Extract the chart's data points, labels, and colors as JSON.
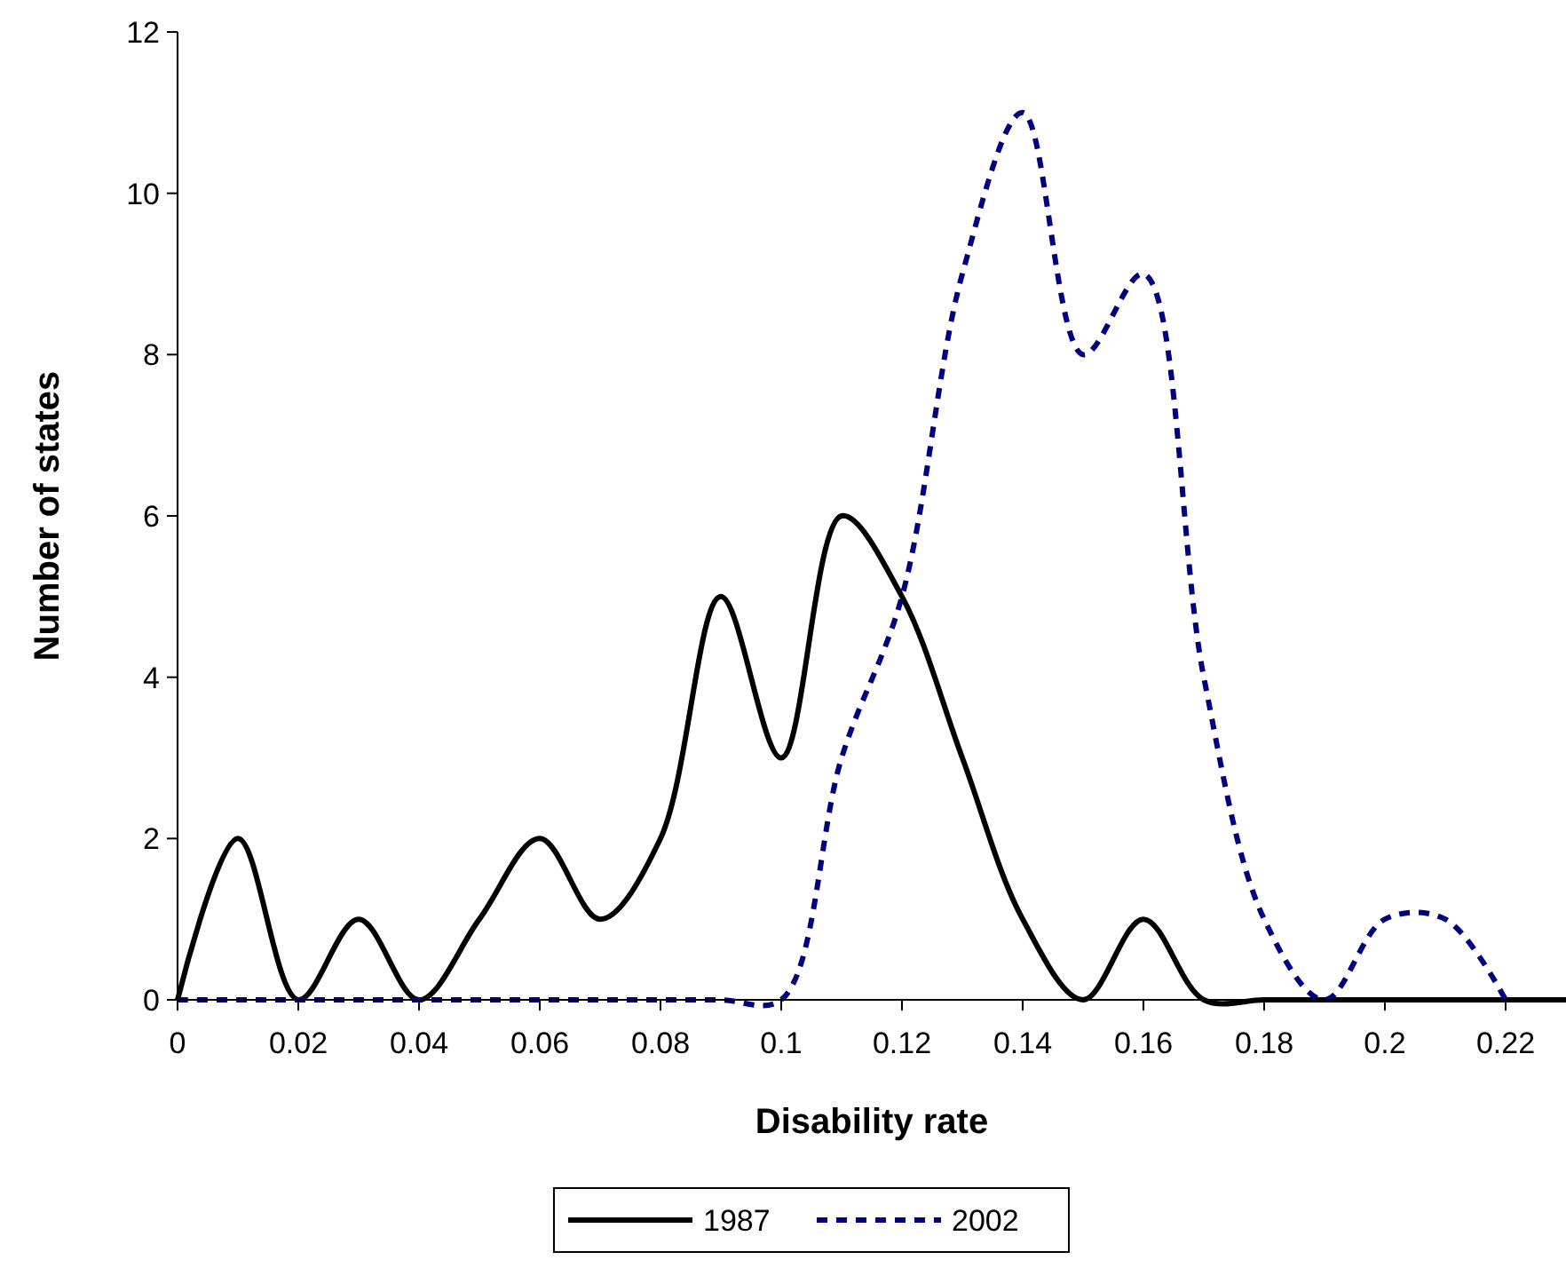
{
  "chart_data": {
    "type": "line",
    "xlabel": "Disability rate",
    "ylabel": "Number of states",
    "x": [
      0,
      0.01,
      0.02,
      0.03,
      0.04,
      0.05,
      0.06,
      0.07,
      0.08,
      0.09,
      0.1,
      0.11,
      0.12,
      0.13,
      0.14,
      0.15,
      0.16,
      0.17,
      0.18,
      0.19,
      0.2,
      0.21,
      0.22,
      0.23
    ],
    "series": [
      {
        "name": "1987",
        "color": "#000000",
        "line_style": "solid",
        "values": [
          0,
          2,
          0,
          1,
          0,
          1,
          2,
          1,
          2,
          5,
          3,
          6,
          5,
          3,
          1,
          0,
          1,
          0,
          0,
          0,
          0,
          0,
          0,
          0
        ]
      },
      {
        "name": "2002",
        "color": "#000080",
        "line_style": "dashed",
        "values": [
          0,
          0,
          0,
          0,
          0,
          0,
          0,
          0,
          0,
          0,
          0,
          3,
          5,
          9,
          11,
          8,
          9,
          4,
          1,
          0,
          1,
          1,
          0,
          null
        ]
      }
    ],
    "xlim": [
      0,
      0.23
    ],
    "xticks": [
      0,
      0.02,
      0.04,
      0.06,
      0.08,
      0.1,
      0.12,
      0.14,
      0.16,
      0.18,
      0.2,
      0.22
    ],
    "ylim": [
      0,
      12
    ],
    "yticks": [
      0,
      2,
      4,
      6,
      8,
      10,
      12
    ],
    "grid": false,
    "legend": "bottom",
    "marker": "none"
  }
}
